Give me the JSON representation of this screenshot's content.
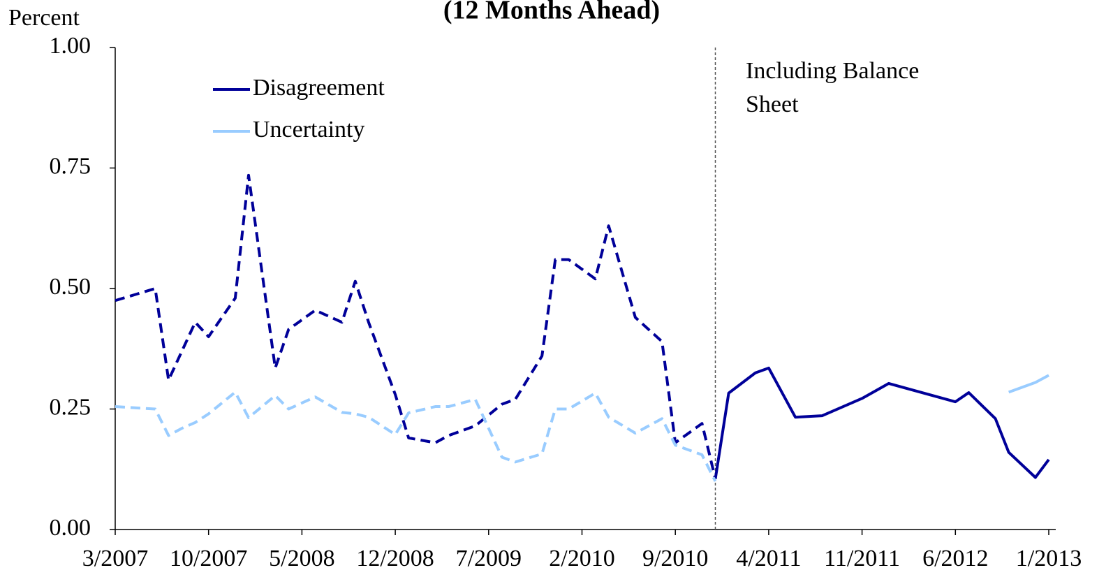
{
  "chart_data": {
    "type": "line",
    "title": "(12 Months Ahead)",
    "y_label": "Percent",
    "x": [
      "3/2007",
      "6/2007",
      "7/2007",
      "8/2007",
      "9/2007",
      "10/2007",
      "12/2007",
      "1/2008",
      "3/2008",
      "4/2008",
      "6/2008",
      "8/2008",
      "9/2008",
      "10/2008",
      "12/2008",
      "1/2009",
      "3/2009",
      "4/2009",
      "6/2009",
      "8/2009",
      "9/2009",
      "11/2009",
      "12/2009",
      "1/2010",
      "3/2010",
      "4/2010",
      "6/2010",
      "8/2010",
      "9/2010",
      "11/2010",
      "12/2010",
      "1/2011",
      "3/2011",
      "4/2011",
      "6/2011",
      "8/2011",
      "11/2011",
      "1/2012",
      "6/2012",
      "7/2012",
      "9/2012",
      "10/2012",
      "12/2012",
      "1/2013"
    ],
    "series": [
      {
        "name": "Disagreement",
        "color": "#000099",
        "values": [
          0.475,
          0.5,
          0.31,
          0.37,
          0.43,
          0.4,
          0.48,
          0.735,
          0.335,
          0.415,
          0.455,
          0.43,
          0.515,
          0.43,
          0.28,
          0.19,
          0.18,
          0.195,
          0.215,
          0.26,
          0.27,
          0.36,
          0.56,
          0.56,
          0.52,
          0.63,
          0.44,
          0.39,
          0.18,
          0.22,
          0.105,
          0.283,
          0.325,
          0.335,
          0.233,
          0.236,
          0.272,
          0.303,
          0.265,
          0.284,
          0.23,
          0.16,
          0.108,
          0.145
        ]
      },
      {
        "name": "Uncertainty",
        "color": "#99ccff",
        "values": [
          0.255,
          0.25,
          0.195,
          0.21,
          0.222,
          0.24,
          0.285,
          0.232,
          0.278,
          0.25,
          0.275,
          0.243,
          0.24,
          0.233,
          0.197,
          0.242,
          0.255,
          0.255,
          0.27,
          0.15,
          0.14,
          0.157,
          0.25,
          0.25,
          0.283,
          0.233,
          0.2,
          0.23,
          0.175,
          0.155,
          0.1,
          null,
          null,
          null,
          null,
          null,
          null,
          null,
          null,
          null,
          null,
          0.285,
          0.305,
          0.32
        ]
      }
    ],
    "xlim": [
      "3/2007",
      "1/2013"
    ],
    "xticks": [
      "3/2007",
      "10/2007",
      "5/2008",
      "12/2008",
      "7/2009",
      "2/2010",
      "9/2010",
      "4/2011",
      "11/2011",
      "6/2012",
      "1/2013"
    ],
    "ylim": [
      0,
      1
    ],
    "yticks": [
      {
        "value": 0,
        "label": "0.00"
      },
      {
        "value": 0.25,
        "label": "0.25"
      },
      {
        "value": 0.5,
        "label": "0.50"
      },
      {
        "value": 0.75,
        "label": "0.75"
      },
      {
        "value": 1,
        "label": "1.00"
      }
    ],
    "divider": {
      "x": "12/2010",
      "label": "Including Balance Sheet"
    },
    "legend": "upper left",
    "grid": false
  }
}
